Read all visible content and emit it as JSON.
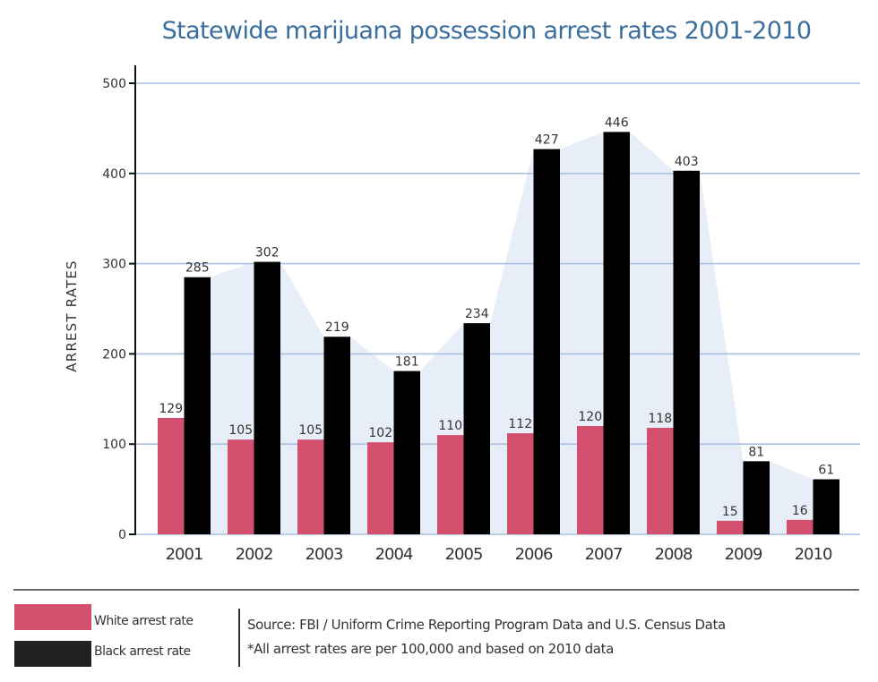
{
  "chart_data": {
    "type": "bar",
    "title": "Statewide marijuana possession arrest rates 2001-2010",
    "xlabel": "",
    "ylabel": "ARREST RATES",
    "ylim": [
      0,
      500
    ],
    "yticks": [
      0,
      100,
      200,
      300,
      400,
      500
    ],
    "grid": true,
    "categories": [
      "2001",
      "2002",
      "2003",
      "2004",
      "2005",
      "2006",
      "2007",
      "2008",
      "2009",
      "2010"
    ],
    "series": [
      {
        "name": "White arrest rate",
        "color": "#d34f6e",
        "values": [
          129,
          105,
          105,
          102,
          110,
          112,
          120,
          118,
          15,
          16
        ]
      },
      {
        "name": "Black arrest rate",
        "color": "#000000",
        "values": [
          285,
          302,
          219,
          181,
          234,
          427,
          446,
          403,
          81,
          61
        ]
      }
    ],
    "background_area": {
      "follows_series": "Black arrest rate",
      "color": "#e8eef7"
    },
    "legend_position": "bottom-left",
    "colors": {
      "title": "#3a6e9e",
      "grid": "#a9bfe3",
      "axis": "#111111",
      "text": "#333333"
    }
  },
  "legend": {
    "items": [
      {
        "label": "White arrest rate",
        "color": "#d34f6e"
      },
      {
        "label": "Black arrest rate",
        "color": "#222222"
      }
    ]
  },
  "notes": {
    "source": "Source: FBI / Uniform Crime Reporting Program Data and U.S. Census Data",
    "footnote": "*All arrest rates are per 100,000 and based on 2010 data"
  }
}
